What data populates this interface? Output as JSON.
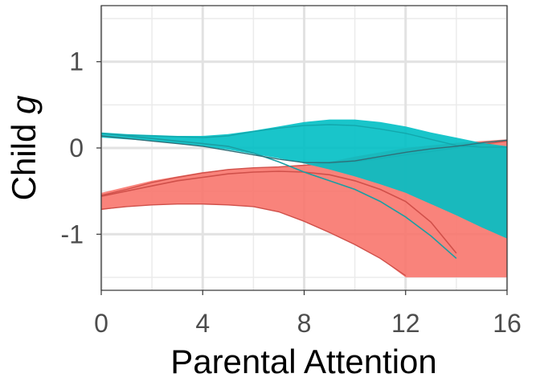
{
  "chart_data": {
    "type": "area",
    "title": "",
    "xlabel": "Parental Attention",
    "ylabel": "Child g",
    "ylabel_parts": [
      "Child ",
      "g"
    ],
    "xlim": [
      0,
      16
    ],
    "ylim": [
      -1.65,
      1.65
    ],
    "x_ticks": [
      0,
      4,
      8,
      12,
      16
    ],
    "x_tick_labels": [
      "0",
      "4",
      "8",
      "12",
      "16"
    ],
    "y_ticks": [
      -1,
      0,
      1
    ],
    "y_tick_labels": [
      "-1",
      "0",
      "1"
    ],
    "grid": true,
    "legend": "none",
    "series": [
      {
        "color": "#F8766D",
        "x": [
          0,
          1,
          2,
          3,
          4,
          5,
          6,
          7,
          8,
          9,
          10,
          11,
          12,
          13,
          14,
          15,
          16
        ],
        "lower": [
          -0.72,
          -0.68,
          -0.66,
          -0.65,
          -0.65,
          -0.66,
          -0.68,
          -0.74,
          -0.85,
          -0.98,
          -1.12,
          -1.28,
          -1.5,
          -1.5,
          -1.5,
          -1.5,
          -1.5
        ],
        "upper": [
          -0.52,
          -0.45,
          -0.38,
          -0.33,
          -0.28,
          -0.25,
          -0.23,
          -0.22,
          -0.2,
          -0.16,
          -0.1,
          -0.05,
          0.0,
          0.03,
          0.06,
          0.08,
          0.1
        ],
        "median": [
          -0.56,
          -0.5,
          -0.44,
          -0.38,
          -0.34,
          -0.3,
          -0.28,
          -0.27,
          -0.28,
          -0.31,
          -0.38,
          -0.48,
          -0.62,
          -0.86,
          -1.22,
          null,
          null
        ],
        "low_line": [
          -0.71,
          -0.68,
          -0.66,
          -0.65,
          -0.65,
          -0.66,
          -0.68,
          -0.74,
          -0.85,
          -0.98,
          -1.12,
          -1.28,
          -1.48,
          null,
          null,
          null,
          null
        ],
        "high_line": [
          -0.55,
          -0.48,
          -0.4,
          -0.34,
          -0.29,
          -0.25,
          -0.23,
          -0.22,
          -0.2,
          -0.18,
          -0.16,
          -0.12,
          -0.08,
          -0.04,
          0.0,
          0.04,
          0.08
        ]
      },
      {
        "color": "#00BFC4",
        "x": [
          0,
          1,
          2,
          3,
          4,
          5,
          6,
          7,
          8,
          9,
          10,
          11,
          12,
          13,
          14,
          15,
          16
        ],
        "lower": [
          0.12,
          0.1,
          0.08,
          0.05,
          0.02,
          -0.02,
          -0.07,
          -0.12,
          -0.18,
          -0.25,
          -0.33,
          -0.42,
          -0.52,
          -0.65,
          -0.78,
          -0.92,
          -1.05
        ],
        "upper": [
          0.18,
          0.16,
          0.15,
          0.14,
          0.14,
          0.16,
          0.2,
          0.25,
          0.3,
          0.33,
          0.33,
          0.3,
          0.25,
          0.18,
          0.12,
          0.06,
          0.02
        ],
        "median": [
          0.17,
          0.14,
          0.11,
          0.08,
          0.05,
          0.02,
          -0.06,
          -0.16,
          -0.28,
          -0.38,
          -0.48,
          -0.62,
          -0.8,
          -1.02,
          -1.28,
          null,
          null
        ],
        "high_line": [
          0.17,
          0.15,
          0.14,
          0.13,
          0.12,
          0.14,
          0.19,
          0.23,
          0.26,
          0.27,
          0.26,
          0.22,
          0.17,
          0.1,
          0.03,
          0.01,
          0.01
        ],
        "dark_line": [
          0.14,
          0.11,
          0.08,
          0.05,
          0.02,
          -0.03,
          -0.08,
          -0.13,
          -0.17,
          -0.17,
          -0.15,
          -0.1,
          -0.05,
          -0.01,
          0.02,
          0.06,
          0.09
        ]
      }
    ]
  }
}
